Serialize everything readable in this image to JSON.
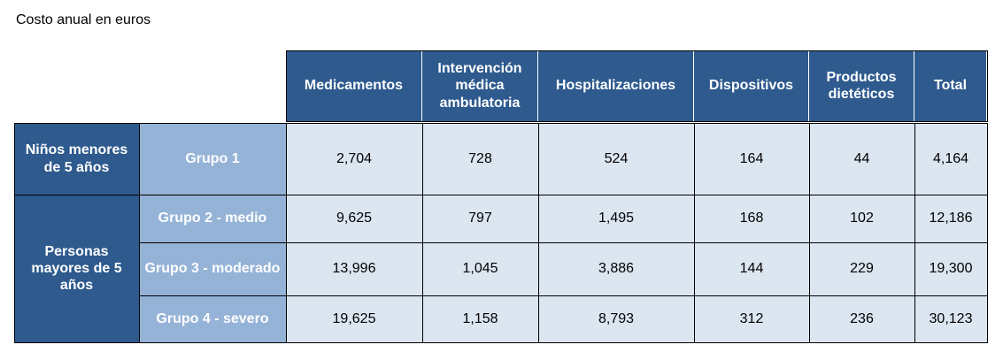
{
  "caption": "Costo anual en euros",
  "headers": [
    "Medicamentos",
    "Intervención médica ambulatoria",
    "Hospitalizaciones",
    "Dispositivos",
    "Productos dietéticos",
    "Total"
  ],
  "row_groups": [
    "Niños menores de 5 años",
    "Personas mayores de 5 años"
  ],
  "rows": [
    {
      "label": "Grupo 1",
      "values": [
        "2,704",
        "728",
        "524",
        "164",
        "44",
        "4,164"
      ]
    },
    {
      "label": "Grupo 2 - medio",
      "values": [
        "9,625",
        "797",
        "1,495",
        "168",
        "102",
        "12,186"
      ]
    },
    {
      "label": "Grupo 3 - moderado",
      "values": [
        "13,996",
        "1,045",
        "3,886",
        "144",
        "229",
        "19,300"
      ]
    },
    {
      "label": "Grupo 4 - severo",
      "values": [
        "19,625",
        "1,158",
        "8,793",
        "312",
        "236",
        "30,123"
      ]
    }
  ]
}
